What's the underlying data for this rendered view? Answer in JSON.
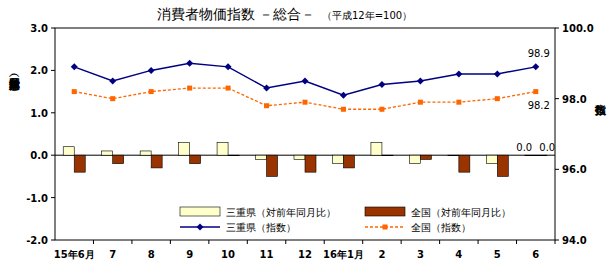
{
  "chart_data": {
    "type": "bar",
    "title": "消費者物価指数 －総合－",
    "subtitle": "（平成12年=100）",
    "y_label": "対前年同月比（％）",
    "y2_label": "指数",
    "categories": [
      "15年6月",
      "7",
      "8",
      "9",
      "10",
      "11",
      "12",
      "16年1月",
      "2",
      "3",
      "4",
      "5",
      "6"
    ],
    "ylim": [
      -2.0,
      3.0
    ],
    "yticks": [
      {
        "value": -2.0,
        "label": "-2.0"
      },
      {
        "value": -1.0,
        "label": "-1.0"
      },
      {
        "value": 0.0,
        "label": "0.0"
      },
      {
        "value": 1.0,
        "label": "1.0"
      },
      {
        "value": 2.0,
        "label": "2.0"
      },
      {
        "value": 3.0,
        "label": "3.0"
      }
    ],
    "y2lim": [
      94.0,
      100.0
    ],
    "y2ticks": [
      {
        "value": 94.0,
        "label": "94.0"
      },
      {
        "value": 96.0,
        "label": "96.0"
      },
      {
        "value": 98.0,
        "label": "98.0"
      },
      {
        "value": 100.0,
        "label": "100.0"
      }
    ],
    "grid": false,
    "legend": "bottom",
    "series": [
      {
        "name": "三重県（対前年同月比）",
        "type": "bar",
        "color": "#ffffcc",
        "values": [
          0.2,
          0.1,
          0.1,
          0.3,
          0.3,
          -0.1,
          -0.1,
          -0.2,
          0.3,
          -0.2,
          0.0,
          -0.2,
          0.0
        ]
      },
      {
        "name": "全国（対前年同月比）",
        "type": "bar",
        "color": "#993300",
        "values": [
          -0.4,
          -0.2,
          -0.3,
          -0.2,
          0.0,
          -0.5,
          -0.4,
          -0.3,
          0.0,
          -0.1,
          -0.4,
          -0.5,
          0.0
        ]
      },
      {
        "name": "三重県（指数）",
        "type": "line",
        "axis": "y2",
        "color": "#000080",
        "marker": "diamond",
        "line_style": "solid",
        "values": [
          98.9,
          98.5,
          98.8,
          99.0,
          98.9,
          98.3,
          98.5,
          98.1,
          98.4,
          98.5,
          98.7,
          98.7,
          98.9
        ]
      },
      {
        "name": "全国（指数）",
        "type": "line",
        "axis": "y2",
        "color": "#ff6600",
        "marker": "square",
        "line_style": "dashed",
        "values": [
          98.2,
          98.0,
          98.2,
          98.3,
          98.3,
          97.8,
          97.9,
          97.7,
          97.7,
          97.9,
          97.9,
          98.0,
          98.2
        ]
      }
    ],
    "annotations": [
      {
        "text": "98.9",
        "series": "三重県（指数）"
      },
      {
        "text": "98.2",
        "series": "全国（指数）"
      },
      {
        "text": "0.0",
        "series": "三重県（対前年同月比）"
      },
      {
        "text": "0.0",
        "series": "全国（対前年同月比）"
      }
    ]
  }
}
